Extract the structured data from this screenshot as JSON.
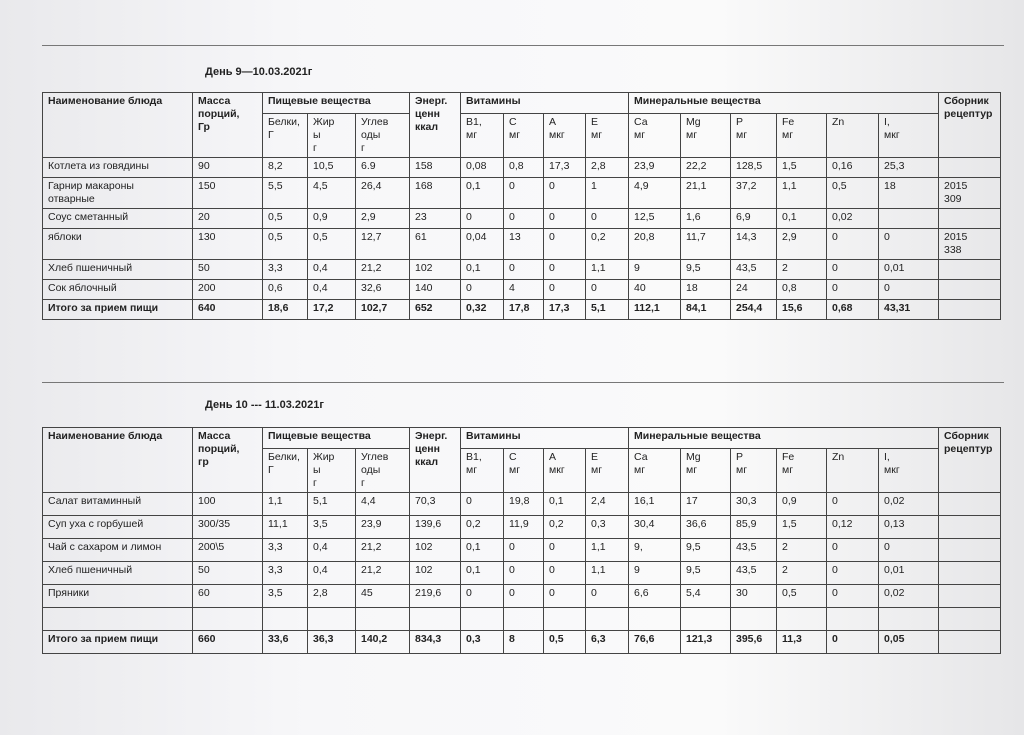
{
  "sections": [
    {
      "title": "День 9—10.03.2021г",
      "header": {
        "dish": "Наименование блюда",
        "mass": "Масса\nпорций,\nГр",
        "nutrients": "Пищевые вещества",
        "energy": "Энерг.\nценн\nккал",
        "vitamins": "Витамины",
        "minerals": "Минеральные вещества",
        "recipes": "Сборник\nрецептур",
        "sub": [
          "Белки,\nГ",
          "Жир\nы\nг",
          "Углев\nоды\nг",
          "В1,\nмг",
          "С\nмг",
          "А\nмкг",
          "Е\nмг",
          "Са\nмг",
          "Mg\nмг",
          "Р\nмг",
          "Fe\nмг",
          "Zn",
          "I,\nмкг"
        ]
      },
      "rows": [
        [
          "Котлета из говядины",
          "90",
          "8,2",
          "10,5",
          "6.9",
          "158",
          "0,08",
          "0,8",
          "17,3",
          "2,8",
          "23,9",
          "22,2",
          "128,5",
          "1,5",
          "0,16",
          "25,3",
          null
        ],
        [
          "Гарнир макароны\nотварные",
          "150",
          "5,5",
          "4,5",
          "26,4",
          "168",
          "0,1",
          "0",
          "0",
          "1",
          "4,9",
          "21,1",
          "37,2",
          "1,1",
          "0,5",
          "18",
          "2015\n309"
        ],
        [
          "Соус сметанный",
          "20",
          "0,5",
          "0,9",
          "2,9",
          "23",
          "0",
          "0",
          "0",
          "0",
          "12,5",
          "1,6",
          "6,9",
          "0,1",
          "0,02",
          null,
          null
        ],
        [
          "яблоки",
          "130",
          "0,5",
          "0,5",
          "12,7",
          "61",
          "0,04",
          "13",
          "0",
          "0,2",
          "20,8",
          "11,7",
          "14,3",
          "2,9",
          "0",
          "0",
          "2015\n338"
        ],
        [
          "Хлеб пшеничный",
          "50",
          "3,3",
          "0,4",
          "21,2",
          "102",
          "0,1",
          "0",
          "0",
          "1,1",
          "9",
          "9,5",
          "43,5",
          "2",
          "0",
          "0,01",
          null
        ],
        [
          "Сок яблочный",
          "200",
          "0,6",
          "0,4",
          "32,6",
          "140",
          "0",
          "4",
          "0",
          "0",
          "40",
          "18",
          "24",
          "0,8",
          "0",
          "0",
          null
        ],
        [
          "Итого за прием пищи",
          "640",
          "18,6",
          "17,2",
          "102,7",
          "652",
          "0,32",
          "17,8",
          "17,3",
          "5,1",
          "112,1",
          "84,1",
          "254,4",
          "15,6",
          "0,68",
          "43,31",
          null
        ]
      ]
    },
    {
      "title": "День 10 --- 11.03.2021г",
      "header": {
        "dish": "Наименование блюда",
        "mass": "Масса\nпорций,\nгр",
        "nutrients": "Пищевые вещества",
        "energy": "Энерг.\nценн\nккал",
        "vitamins": "Витамины",
        "minerals": "Минеральные вещества",
        "recipes": "Сборник\nрецептур",
        "sub": [
          "Белки,\nГ",
          "Жир\nы\nг",
          "Углев\nоды\nг",
          "В1,\nмг",
          "С\nмг",
          "А\nмкг",
          "Е\nмг",
          "Са\nмг",
          "Mg\nмг",
          "Р\nмг",
          "Fe\nмг",
          "Zn",
          "I,\nмкг"
        ]
      },
      "rows": [
        [
          "Салат витаминный",
          "100",
          "1,1",
          "5,1",
          "4,4",
          "70,3",
          "0",
          "19,8",
          "0,1",
          "2,4",
          "16,1",
          "17",
          "30,3",
          "0,9",
          "0",
          "0,02",
          null
        ],
        [
          "Суп уха с горбушей",
          "300/35",
          "11,1",
          "3,5",
          "23,9",
          "139,6",
          "0,2",
          "11,9",
          "0,2",
          "0,3",
          "30,4",
          "36,6",
          "85,9",
          "1,5",
          "0,12",
          "0,13",
          null
        ],
        [
          "Чай с сахаром и лимон",
          "200\\5",
          "3,3",
          "0,4",
          "21,2",
          "102",
          "0,1",
          "0",
          "0",
          "1,1",
          "9,",
          "9,5",
          "43,5",
          "2",
          "0",
          "0",
          null
        ],
        [
          "Хлеб пшеничный",
          "50",
          "3,3",
          "0,4",
          "21,2",
          "102",
          "0,1",
          "0",
          "0",
          "1,1",
          "9",
          "9,5",
          "43,5",
          "2",
          "0",
          "0,01",
          null
        ],
        [
          "Пряники",
          "60",
          "3,5",
          "2,8",
          "45",
          "219,6",
          "0",
          "0",
          "0",
          "0",
          "6,6",
          "5,4",
          "30",
          "0,5",
          "0",
          "0,02",
          null
        ],
        [
          null,
          null,
          null,
          null,
          null,
          null,
          null,
          null,
          null,
          null,
          null,
          null,
          null,
          null,
          null,
          null,
          null
        ],
        [
          "Итого за прием пищи",
          "660",
          "33,6",
          "36,3",
          "140,2",
          "834,3",
          "0,3",
          "8",
          "0,5",
          "6,3",
          "76,6",
          "121,3",
          "395,6",
          "11,3",
          "0",
          "0,05",
          null
        ]
      ]
    }
  ]
}
